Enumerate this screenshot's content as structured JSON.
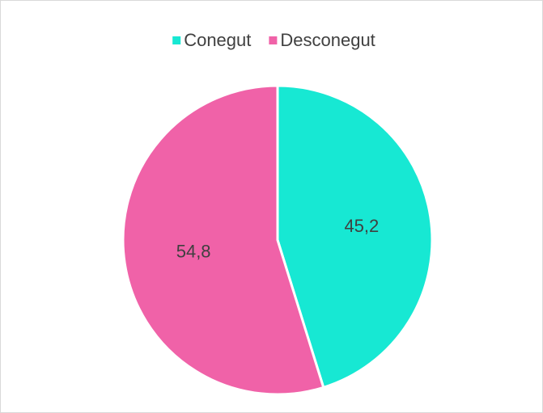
{
  "chart_data": {
    "type": "pie",
    "categories": [
      "Conegut",
      "Desconegut"
    ],
    "values": [
      45.2,
      54.8
    ],
    "value_labels": [
      "45,2",
      "54,8"
    ],
    "colors": [
      "#17e8d3",
      "#f062a8"
    ],
    "legend": "top"
  }
}
